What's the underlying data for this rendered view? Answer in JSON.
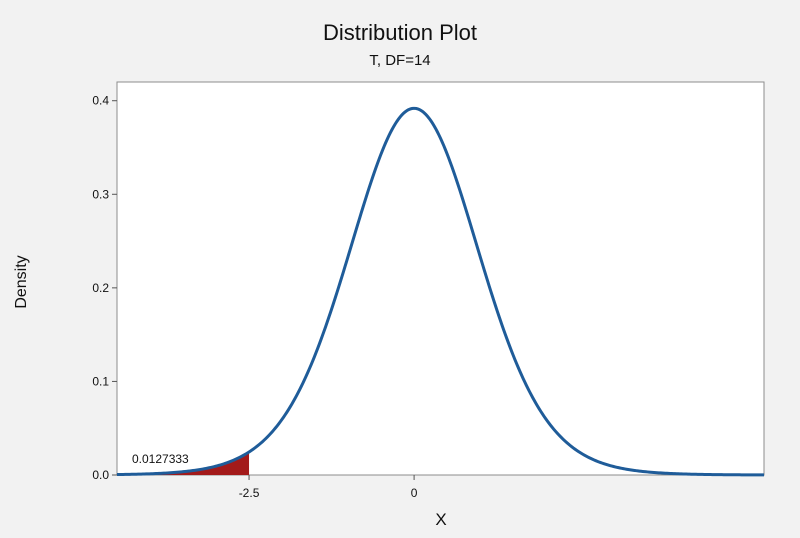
{
  "chart_data": {
    "type": "area",
    "title": "Distribution Plot",
    "subtitle": "T, DF=14",
    "xlabel": "X",
    "ylabel": "Density",
    "distribution": {
      "name": "T",
      "df": 14
    },
    "xlim": [
      -4.5,
      5.3
    ],
    "ylim": [
      0,
      0.42
    ],
    "x_ticks": [
      {
        "value": -2.5,
        "label": "-2.5"
      },
      {
        "value": 0,
        "label": "0"
      }
    ],
    "y_ticks": [
      {
        "value": 0.0,
        "label": "0.0"
      },
      {
        "value": 0.1,
        "label": "0.1"
      },
      {
        "value": 0.2,
        "label": "0.2"
      },
      {
        "value": 0.3,
        "label": "0.3"
      },
      {
        "value": 0.4,
        "label": "0.4"
      }
    ],
    "shaded_region": {
      "from": -4.5,
      "to": -2.5,
      "probability_label": "0.0127333",
      "color": "#a31a1a"
    },
    "curve_color": "#1f5c99",
    "grid": false,
    "legend": "none"
  }
}
